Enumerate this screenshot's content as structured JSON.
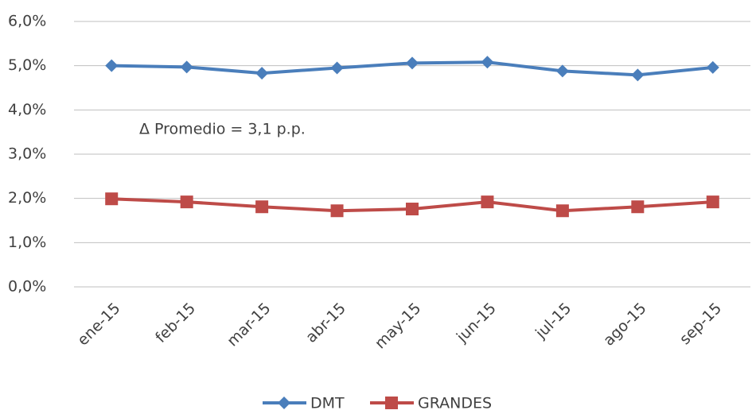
{
  "chart_data": {
    "type": "line",
    "annotation": "Δ Promedio = 3,1 p.p.",
    "categories": [
      "ene-15",
      "feb-15",
      "mar-15",
      "abr-15",
      "may-15",
      "jun-15",
      "jul-15",
      "ago-15",
      "sep-15"
    ],
    "series": [
      {
        "name": "DMT",
        "color": "#4a7ebb",
        "marker": "diamond",
        "values": [
          5.0,
          4.97,
          4.83,
          4.95,
          5.06,
          5.08,
          4.88,
          4.79,
          4.96
        ]
      },
      {
        "name": "GRANDES",
        "color": "#be4b48",
        "marker": "square",
        "values": [
          1.99,
          1.92,
          1.81,
          1.72,
          1.76,
          1.92,
          1.72,
          1.81,
          1.92
        ]
      }
    ],
    "ylim": [
      0,
      6
    ],
    "yticks": [
      {
        "value": 0,
        "label": "0,0%"
      },
      {
        "value": 1,
        "label": "1,0%"
      },
      {
        "value": 2,
        "label": "2,0%"
      },
      {
        "value": 3,
        "label": "3,0%"
      },
      {
        "value": 4,
        "label": "4,0%"
      },
      {
        "value": 5,
        "label": "5,0%"
      },
      {
        "value": 6,
        "label": "6,0%"
      }
    ],
    "grid": true,
    "legend": "bottom"
  }
}
